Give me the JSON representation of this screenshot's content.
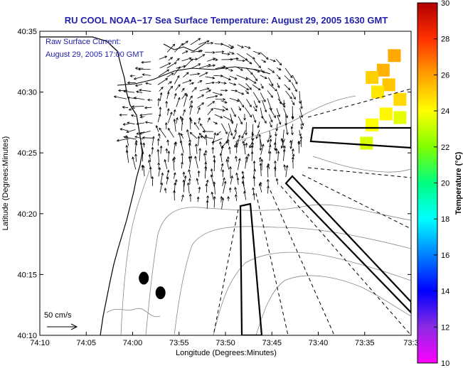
{
  "chart_data": {
    "type": "vector-field-map",
    "title": "RU COOL  NOAA−17  Sea Surface Temperature:  August 29, 2005 1630 GMT",
    "annotation_line1": "Raw Surface Current:",
    "annotation_line2": "August 29, 2005 17:00 GMT",
    "xlabel": "Longitude (Degrees:Minutes)",
    "ylabel": "Latitude (Degrees:Minutes)",
    "x_ticks": [
      "74:10",
      "74:05",
      "74:00",
      "73:55",
      "73:50",
      "73:45",
      "73:40",
      "73:35",
      "73:3"
    ],
    "y_ticks": [
      "40:35",
      "40:30",
      "40:25",
      "40:20",
      "40:15",
      "40:10"
    ],
    "xlim_deg": [
      -74.1667,
      -73.5
    ],
    "ylim_deg": [
      40.1667,
      40.5833
    ],
    "scale_label": "50 cm/s",
    "colorbar": {
      "label": "Temperature (°C)",
      "min": 10,
      "max": 30,
      "ticks": [
        "10",
        "12",
        "14",
        "16",
        "18",
        "20",
        "22",
        "24",
        "26",
        "28",
        "30"
      ],
      "colors": [
        "#ff00ff",
        "#8a2be2",
        "#0000ff",
        "#0080ff",
        "#00ffff",
        "#00ff80",
        "#80ff00",
        "#ffff00",
        "#ffa000",
        "#ff3000",
        "#b00000"
      ]
    },
    "sst_patches": [
      {
        "lon": -73.55,
        "lat": 40.53,
        "temp": 25.6
      },
      {
        "lon": -73.54,
        "lat": 40.51,
        "temp": 25.2
      },
      {
        "lon": -73.57,
        "lat": 40.52,
        "temp": 25.0
      },
      {
        "lon": -73.53,
        "lat": 40.55,
        "temp": 25.8
      },
      {
        "lon": -73.52,
        "lat": 40.49,
        "temp": 24.8
      },
      {
        "lon": -73.56,
        "lat": 40.5,
        "temp": 24.5
      },
      {
        "lon": -73.545,
        "lat": 40.47,
        "temp": 24.2
      },
      {
        "lon": -73.52,
        "lat": 40.465,
        "temp": 23.6
      },
      {
        "lon": -73.57,
        "lat": 40.455,
        "temp": 24.0
      },
      {
        "lon": -73.58,
        "lat": 40.43,
        "temp": 23.4
      }
    ],
    "buoys": [
      {
        "lon": -73.98,
        "lat": 40.245
      },
      {
        "lon": -73.95,
        "lat": 40.225
      }
    ],
    "grid": false,
    "legend": "none"
  }
}
